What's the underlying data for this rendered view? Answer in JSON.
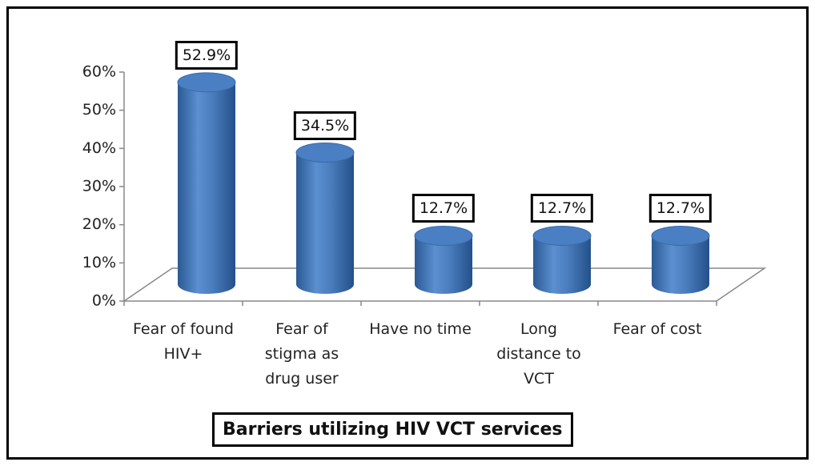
{
  "chart_data": {
    "type": "bar3d",
    "x_label": "Barriers utilizing HIV VCT services",
    "categories": [
      "Fear of found HIV+",
      "Fear of stigma as drug user",
      "Have no time",
      "Long distance to VCT",
      "Fear of cost"
    ],
    "values": [
      52.9,
      34.5,
      12.7,
      12.7,
      12.7
    ],
    "value_labels": [
      "52.9%",
      "34.5%",
      "12.7%",
      "12.7%",
      "12.7%"
    ],
    "color": "#4f81bd",
    "ylim": [
      0,
      60
    ],
    "yticks": [
      {
        "value": 0,
        "label": "0%"
      },
      {
        "value": 10,
        "label": "10%"
      },
      {
        "value": 20,
        "label": "20%"
      },
      {
        "value": 30,
        "label": "30%"
      },
      {
        "value": 40,
        "label": "40%"
      },
      {
        "value": 50,
        "label": "50%"
      },
      {
        "value": 60,
        "label": "60%"
      }
    ]
  }
}
